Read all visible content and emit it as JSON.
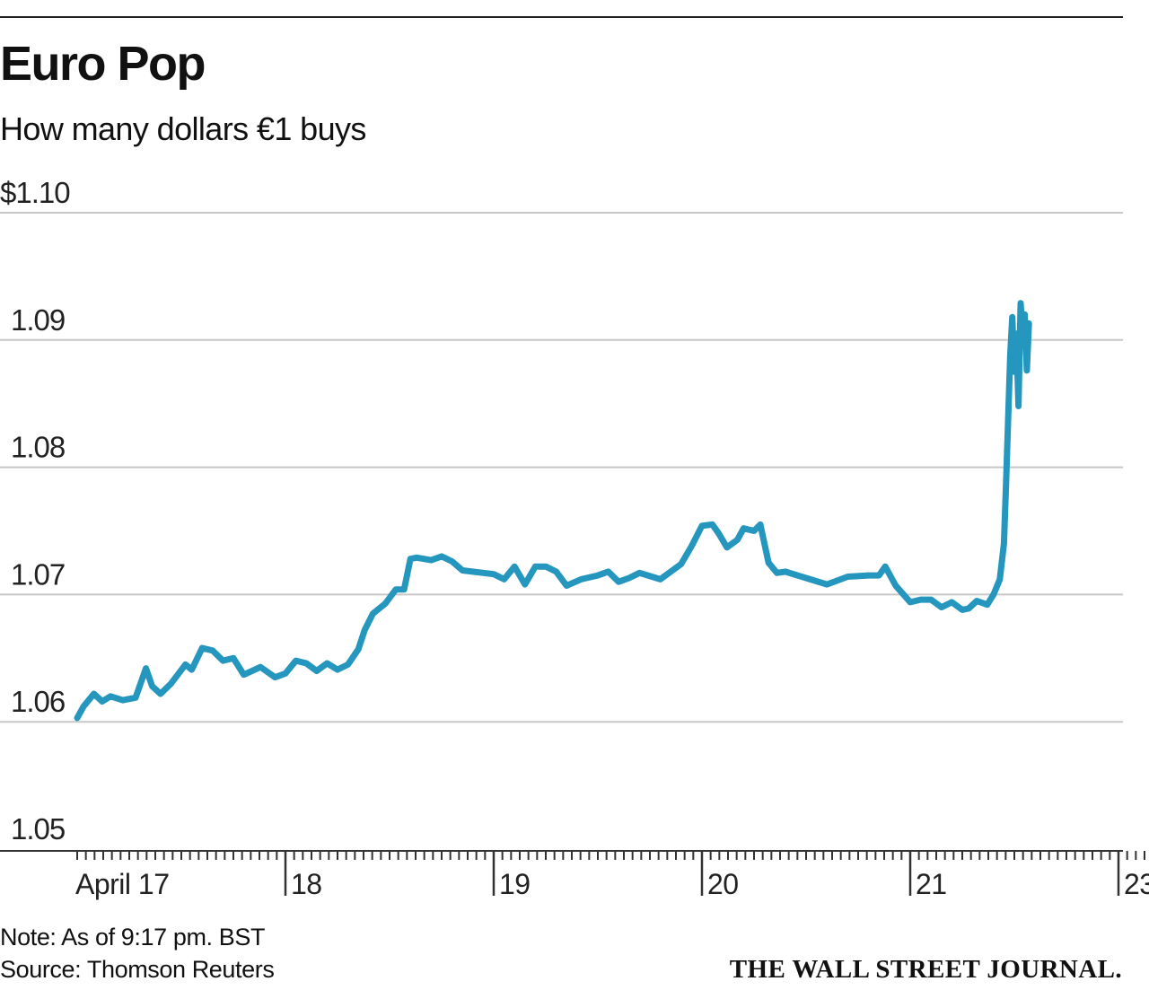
{
  "header": {
    "title": "Euro Pop",
    "subtitle": "How many dollars €1 buys"
  },
  "footer": {
    "note": "Note: As of 9:17 pm. BST",
    "source": "Source: Thomson Reuters",
    "brand": "THE WALL STREET JOURNAL."
  },
  "colors": {
    "line": "#2596be",
    "grid": "#c8c8c8",
    "axis": "#333333"
  },
  "chart_data": {
    "type": "line",
    "title": "Euro Pop",
    "subtitle": "How many dollars €1 buys",
    "ylim": [
      1.05,
      1.1
    ],
    "y_ticks": [
      1.05,
      1.06,
      1.07,
      1.08,
      1.09,
      1.1
    ],
    "y_tick_labels": [
      "1.05",
      "1.06",
      "1.07",
      "1.08",
      "1.09",
      "$1.10"
    ],
    "xlim": [
      0,
      5.17
    ],
    "x_ticks": [
      0,
      1,
      2,
      3,
      4,
      5
    ],
    "x_tick_labels": [
      "April 17",
      "18",
      "19",
      "20",
      "21",
      "23"
    ],
    "grid": true,
    "series": [
      {
        "values": [
          [
            0.0,
            1.0603
          ],
          [
            0.03,
            1.0612
          ],
          [
            0.08,
            1.0622
          ],
          [
            0.12,
            1.0616
          ],
          [
            0.16,
            1.062
          ],
          [
            0.22,
            1.0617
          ],
          [
            0.28,
            1.0619
          ],
          [
            0.33,
            1.0642
          ],
          [
            0.36,
            1.0628
          ],
          [
            0.4,
            1.0622
          ],
          [
            0.45,
            1.063
          ],
          [
            0.52,
            1.0645
          ],
          [
            0.55,
            1.0641
          ],
          [
            0.6,
            1.0658
          ],
          [
            0.65,
            1.0656
          ],
          [
            0.7,
            1.0648
          ],
          [
            0.75,
            1.065
          ],
          [
            0.8,
            1.0637
          ],
          [
            0.88,
            1.0643
          ],
          [
            0.95,
            1.0635
          ],
          [
            1.0,
            1.0638
          ],
          [
            1.05,
            1.0648
          ],
          [
            1.1,
            1.0646
          ],
          [
            1.15,
            1.064
          ],
          [
            1.2,
            1.0646
          ],
          [
            1.25,
            1.0641
          ],
          [
            1.3,
            1.0645
          ],
          [
            1.35,
            1.0657
          ],
          [
            1.38,
            1.0672
          ],
          [
            1.42,
            1.0685
          ],
          [
            1.48,
            1.0693
          ],
          [
            1.53,
            1.0704
          ],
          [
            1.57,
            1.0704
          ],
          [
            1.6,
            1.0728
          ],
          [
            1.63,
            1.0729
          ],
          [
            1.7,
            1.0727
          ],
          [
            1.75,
            1.073
          ],
          [
            1.8,
            1.0726
          ],
          [
            1.85,
            1.0719
          ],
          [
            1.95,
            1.0717
          ],
          [
            2.0,
            1.0716
          ],
          [
            2.05,
            1.0712
          ],
          [
            2.1,
            1.0722
          ],
          [
            2.15,
            1.0708
          ],
          [
            2.2,
            1.0722
          ],
          [
            2.25,
            1.0722
          ],
          [
            2.3,
            1.0718
          ],
          [
            2.35,
            1.0707
          ],
          [
            2.42,
            1.0712
          ],
          [
            2.5,
            1.0715
          ],
          [
            2.55,
            1.0718
          ],
          [
            2.6,
            1.071
          ],
          [
            2.65,
            1.0713
          ],
          [
            2.7,
            1.0717
          ],
          [
            2.8,
            1.0712
          ],
          [
            2.85,
            1.0718
          ],
          [
            2.9,
            1.0724
          ],
          [
            2.95,
            1.0738
          ],
          [
            3.0,
            1.0754
          ],
          [
            3.05,
            1.0755
          ],
          [
            3.08,
            1.0748
          ],
          [
            3.12,
            1.0737
          ],
          [
            3.17,
            1.0743
          ],
          [
            3.2,
            1.0752
          ],
          [
            3.25,
            1.075
          ],
          [
            3.28,
            1.0755
          ],
          [
            3.32,
            1.0725
          ],
          [
            3.36,
            1.0717
          ],
          [
            3.4,
            1.0718
          ],
          [
            3.5,
            1.0713
          ],
          [
            3.6,
            1.0708
          ],
          [
            3.7,
            1.0714
          ],
          [
            3.8,
            1.0715
          ],
          [
            3.85,
            1.0715
          ],
          [
            3.88,
            1.0722
          ],
          [
            3.93,
            1.0707
          ],
          [
            4.0,
            1.0694
          ],
          [
            4.05,
            1.0696
          ],
          [
            4.1,
            1.0696
          ],
          [
            4.15,
            1.069
          ],
          [
            4.2,
            1.0694
          ],
          [
            4.25,
            1.0688
          ],
          [
            4.28,
            1.0689
          ],
          [
            4.32,
            1.0695
          ],
          [
            4.37,
            1.0692
          ],
          [
            4.4,
            1.07
          ],
          [
            4.43,
            1.0712
          ],
          [
            4.45,
            1.074
          ],
          [
            4.46,
            1.0786
          ],
          [
            4.47,
            1.0836
          ],
          [
            4.48,
            1.0888
          ],
          [
            4.49,
            1.0918
          ],
          [
            4.5,
            1.0875
          ],
          [
            4.51,
            1.0905
          ],
          [
            4.52,
            1.0848
          ],
          [
            4.53,
            1.0929
          ],
          [
            4.54,
            1.0902
          ],
          [
            4.55,
            1.092
          ],
          [
            4.56,
            1.0876
          ],
          [
            4.57,
            1.0913
          ]
        ]
      }
    ]
  }
}
